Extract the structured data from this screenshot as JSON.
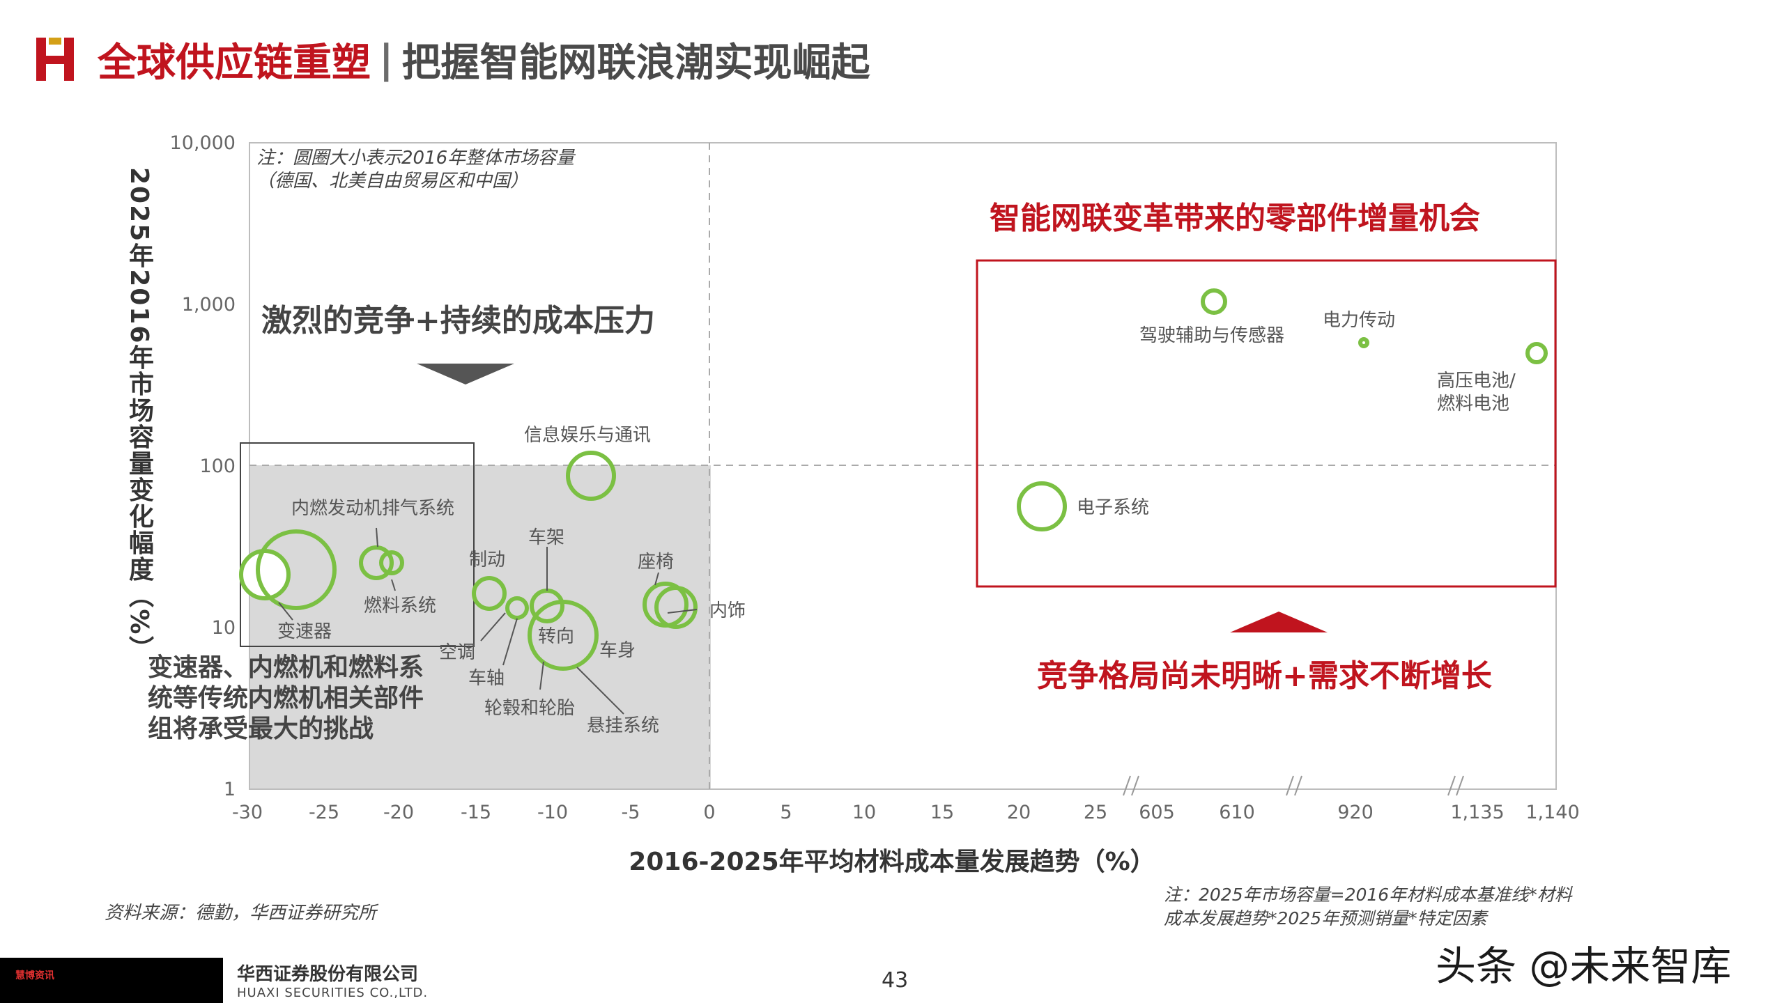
{
  "header": {
    "title_red": "全球供应链重塑",
    "separator": "|",
    "title_gray": "把握智能网联浪潮实现崛起"
  },
  "colors": {
    "brand_red": "#c0141e",
    "bubble_green": "#7bc043",
    "shade_gray": "#d9d9d9"
  },
  "chart_data": {
    "type": "scatter",
    "ylabel": "2025年2016年市场容量变化幅度（%）",
    "xlabel": "2016-2025年平均材料成本量发展趋势（%）",
    "y_scale": "log",
    "ylim": [
      1,
      10000
    ],
    "y_ticks": [
      "1",
      "10",
      "100",
      "1,000",
      "10,000"
    ],
    "x_ticks": [
      "-30",
      "-25",
      "-20",
      "-15",
      "-10",
      "-5",
      "0",
      "5",
      "10",
      "15",
      "20",
      "25",
      "605",
      "610",
      "920",
      "1,135",
      "1,140"
    ],
    "x_axis_breaks": [
      "25-605",
      "610-920",
      "920-1,135"
    ],
    "note_top": [
      "注：圆圈大小表示2016年整体市场容量",
      "（德国、北美自由贸易区和中国）"
    ],
    "points": [
      {
        "label": "变速器",
        "x": -28.5,
        "y": 20
      },
      {
        "label": "变速器(大)",
        "x": -26.5,
        "y": 23
      },
      {
        "label": "内燃发动机排气系统",
        "x": -21.5,
        "y": 24
      },
      {
        "label": "燃料系统",
        "x": -20.5,
        "y": 24
      },
      {
        "label": "制动",
        "x": -14.5,
        "y": 16
      },
      {
        "label": "空调",
        "x": -12.5,
        "y": 13
      },
      {
        "label": "车架",
        "x": -10.5,
        "y": 13
      },
      {
        "label": "车轴",
        "x": -10.5,
        "y": 11
      },
      {
        "label": "转向",
        "x": -9.5,
        "y": 9
      },
      {
        "label": "轮毂和轮胎",
        "x": -10,
        "y": 8
      },
      {
        "label": "悬挂系统",
        "x": -9.5,
        "y": 8
      },
      {
        "label": "信息娱乐与通讯",
        "x": -7.5,
        "y": 80
      },
      {
        "label": "车身",
        "x": -3,
        "y": 14
      },
      {
        "label": "座椅",
        "x": -2.5,
        "y": 13
      },
      {
        "label": "内饰",
        "x": -2,
        "y": 13
      },
      {
        "label": "电子系统",
        "x": 22,
        "y": 50
      },
      {
        "label": "驾驶辅助与传感器",
        "x": 610,
        "y": 1000
      },
      {
        "label": "电力传动",
        "x": 920,
        "y": 550
      },
      {
        "label": "高压电池/燃料电池",
        "x": 1140,
        "y": 500
      }
    ],
    "annotations": {
      "left_head": "激烈的竞争+持续的成本压力",
      "left_body": [
        "变速器、内燃机和燃料系",
        "统等传统内燃机相关部件",
        "组将承受最大的挑战"
      ],
      "right_head": "智能网联变革带来的零部件增量机会",
      "right_foot": "竞争格局尚未明晰+需求不断增长"
    },
    "labels": {
      "infotainment": "信息娱乐与通讯",
      "exhaust": "内燃发动机排气系统",
      "gearbox": "变速器",
      "fuel": "燃料系统",
      "brake": "制动",
      "frame": "车架",
      "seat": "座椅",
      "interior": "内饰",
      "ac": "空调",
      "axle": "车轴",
      "steering": "转向",
      "body": "车身",
      "wheels": "轮毂和轮胎",
      "suspension": "悬挂系统",
      "electronics": "电子系统",
      "adas": "驾驶辅助与传感器",
      "edrive": "电力传动",
      "battery1": "高压电池/",
      "battery2": "燃料电池"
    }
  },
  "footer": {
    "source": "资料来源：德勤，华西证券研究所",
    "calc_note": "注：2025年市场容量=2016年材料成本基准线*材料成本发展趋势*2025年预测销量*特定因素",
    "badge": "慧博资讯",
    "company_cn": "华西证券股份有限公司",
    "company_en": "HUAXI SECURITIES CO.,LTD.",
    "page": "43",
    "watermark": "头条 @未来智库"
  }
}
